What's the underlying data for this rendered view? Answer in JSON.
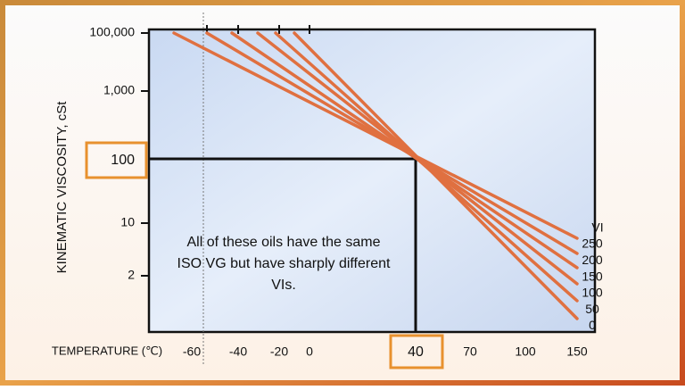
{
  "y_axis_title": "KINEMATIC VISCOSITY, cSt",
  "x_axis_title": "TEMPERATURE (℃)",
  "y_ticks": [
    "100,000",
    "1,000",
    "100",
    "10",
    "2"
  ],
  "x_ticks": [
    "-60",
    "-40",
    "-20",
    "0",
    "40",
    "70",
    "100",
    "150"
  ],
  "annotation": [
    "All of these oils have the same",
    "ISO VG but have sharply different",
    "VIs."
  ],
  "vi_title": "VI",
  "vi_labels": [
    "250",
    "200",
    "150",
    "100",
    "50",
    "0"
  ]
}
